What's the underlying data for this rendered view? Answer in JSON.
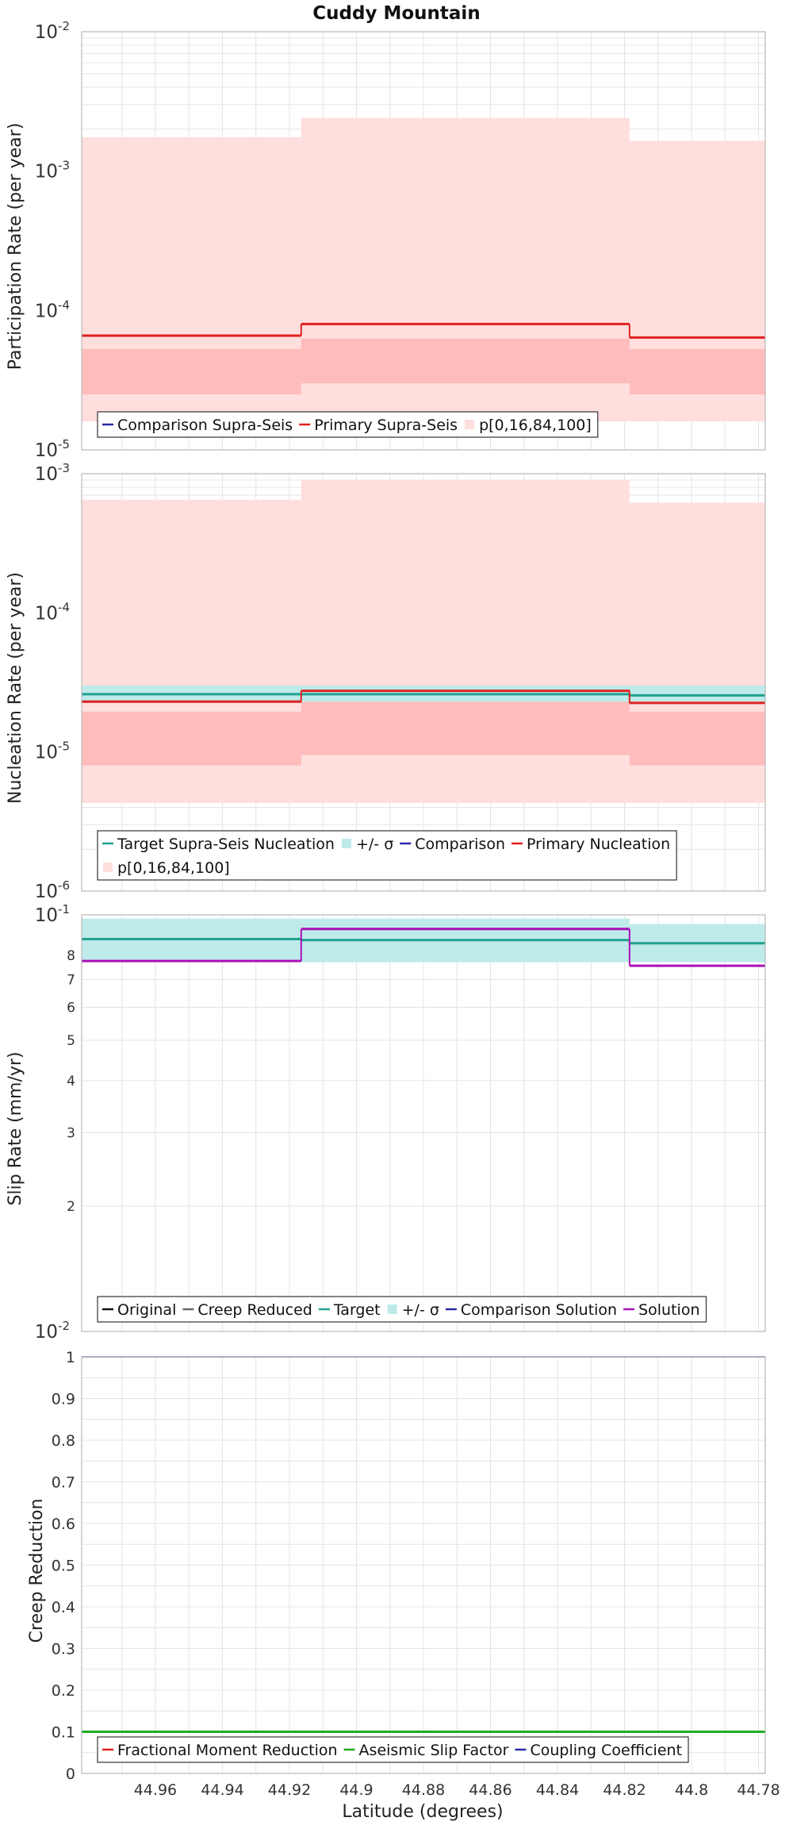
{
  "title": "Cuddy Mountain",
  "xlabel": "Latitude (degrees)",
  "colors": {
    "red": "#e02020",
    "red_band_light": "#ffdede",
    "red_band_dark": "#ffbcbc",
    "teal": "#20a090",
    "teal_band": "#bfeaea",
    "blue": "#2a2aa8",
    "magenta": "#aa10b8",
    "green": "#22aa22",
    "black": "#111111",
    "gray": "#666666",
    "grid": "#e4e4e4"
  },
  "chart_data": [
    {
      "type": "line",
      "name": "participation",
      "ylabel": "Participation Rate (per year)",
      "yscale": "log",
      "ylim": [
        1e-05,
        0.01
      ],
      "xlim": [
        44.982,
        44.778
      ],
      "xticks": [
        "44.96",
        "44.94",
        "44.92",
        "44.9",
        "44.88",
        "44.86",
        "44.84",
        "44.82",
        "44.8",
        "44.78"
      ],
      "xtick_values": [
        44.96,
        44.94,
        44.92,
        44.9,
        44.88,
        44.86,
        44.84,
        44.82,
        44.8,
        44.78
      ],
      "yticks_major": [
        {
          "base": "10",
          "exp": "-5",
          "v": 1e-05
        },
        {
          "base": "10",
          "exp": "-4",
          "v": 0.0001
        },
        {
          "base": "10",
          "exp": "-3",
          "v": 0.001
        },
        {
          "base": "10",
          "exp": "-2",
          "v": 0.01
        }
      ],
      "segments": [
        [
          44.982,
          44.9165
        ],
        [
          44.9165,
          44.8185
        ],
        [
          44.8185,
          44.778
        ]
      ],
      "bands": [
        {
          "lo": [
            1.6e-05,
            1.6e-05,
            1.6e-05
          ],
          "hi": [
            0.00175,
            0.0024,
            0.00165
          ],
          "color": "red_band_light"
        },
        {
          "lo": [
            2.5e-05,
            3e-05,
            2.5e-05
          ],
          "hi": [
            5.3e-05,
            6.3e-05,
            5.3e-05
          ],
          "color": "red_band_dark"
        }
      ],
      "series": [
        {
          "name": "Primary Supra-Seis",
          "values": [
            6.6e-05,
            8e-05,
            6.4e-05
          ],
          "color": "red"
        }
      ],
      "legend": [
        {
          "label": "Comparison Supra-Seis",
          "color": "blue",
          "kind": "line"
        },
        {
          "label": "Primary Supra-Seis",
          "color": "red",
          "kind": "line"
        },
        {
          "label": "p[0,16,84,100]",
          "color": "red_band_light",
          "kind": "patch"
        }
      ]
    },
    {
      "type": "line",
      "name": "nucleation",
      "ylabel": "Nucleation Rate (per year)",
      "yscale": "log",
      "ylim": [
        1e-06,
        0.001
      ],
      "xlim": [
        44.982,
        44.778
      ],
      "yticks_major": [
        {
          "base": "10",
          "exp": "-6",
          "v": 1e-06
        },
        {
          "base": "10",
          "exp": "-5",
          "v": 1e-05
        },
        {
          "base": "10",
          "exp": "-4",
          "v": 0.0001
        },
        {
          "base": "10",
          "exp": "-3",
          "v": 0.001
        }
      ],
      "segments": [
        [
          44.982,
          44.9165
        ],
        [
          44.9165,
          44.8185
        ],
        [
          44.8185,
          44.778
        ]
      ],
      "bands": [
        {
          "lo": [
            4.3e-06,
            4.3e-06,
            4.3e-06
          ],
          "hi": [
            0.00065,
            0.0009,
            0.00062
          ],
          "color": "red_band_light"
        },
        {
          "lo": [
            8e-06,
            9.5e-06,
            8e-06
          ],
          "hi": [
            1.95e-05,
            2.3e-05,
            1.95e-05
          ],
          "color": "red_band_dark"
        },
        {
          "lo": [
            2.3e-05,
            2.3e-05,
            2.3e-05
          ],
          "hi": [
            3e-05,
            3e-05,
            3e-05
          ],
          "color": "teal_band"
        }
      ],
      "series": [
        {
          "name": "Target Supra-Seis Nucleation",
          "values": [
            2.6e-05,
            2.6e-05,
            2.55e-05
          ],
          "color": "teal"
        },
        {
          "name": "Primary Nucleation",
          "values": [
            2.3e-05,
            2.75e-05,
            2.25e-05
          ],
          "color": "red"
        }
      ],
      "legend": [
        {
          "label": "Target Supra-Seis Nucleation",
          "color": "teal",
          "kind": "line"
        },
        {
          "label": "+/- σ",
          "color": "teal_band",
          "kind": "patch"
        },
        {
          "label": "Comparison",
          "color": "blue",
          "kind": "line"
        },
        {
          "label": "Primary Nucleation",
          "color": "red",
          "kind": "line"
        },
        {
          "label": "p[0,16,84,100]",
          "color": "red_band_light",
          "kind": "patch"
        }
      ]
    },
    {
      "type": "line",
      "name": "sliprate",
      "ylabel": "Slip Rate (mm/yr)",
      "yscale": "log",
      "ylim": [
        0.01,
        0.1
      ],
      "xlim": [
        44.982,
        44.778
      ],
      "yticks_major": [
        {
          "base": "10",
          "exp": "-2",
          "v": 0.01
        },
        {
          "base": "10",
          "exp": "-1",
          "v": 0.1
        }
      ],
      "yticks_minor": [
        {
          "label": "2",
          "v": 0.02
        },
        {
          "label": "3",
          "v": 0.03
        },
        {
          "label": "4",
          "v": 0.04
        },
        {
          "label": "5",
          "v": 0.05
        },
        {
          "label": "6",
          "v": 0.06
        },
        {
          "label": "7",
          "v": 0.07
        },
        {
          "label": "8",
          "v": 0.08
        }
      ],
      "segments": [
        [
          44.982,
          44.9165
        ],
        [
          44.9165,
          44.8185
        ],
        [
          44.8185,
          44.778
        ]
      ],
      "bands": [
        {
          "lo": [
            0.077,
            0.077,
            0.077
          ],
          "hi": [
            0.098,
            0.098,
            0.095
          ],
          "color": "teal_band"
        }
      ],
      "series": [
        {
          "name": "Target",
          "values": [
            0.0875,
            0.087,
            0.0855
          ],
          "color": "teal"
        },
        {
          "name": "Solution",
          "values": [
            0.0775,
            0.0925,
            0.0755
          ],
          "color": "magenta"
        }
      ],
      "legend": [
        {
          "label": "Original",
          "color": "black",
          "kind": "line"
        },
        {
          "label": "Creep Reduced",
          "color": "gray",
          "kind": "line"
        },
        {
          "label": "Target",
          "color": "teal",
          "kind": "line"
        },
        {
          "label": "+/- σ",
          "color": "teal_band",
          "kind": "patch"
        },
        {
          "label": "Comparison Solution",
          "color": "blue",
          "kind": "line"
        },
        {
          "label": "Solution",
          "color": "magenta",
          "kind": "line"
        }
      ]
    },
    {
      "type": "line",
      "name": "creep",
      "ylabel": "Creep Reduction",
      "yscale": "linear",
      "ylim": [
        0,
        1
      ],
      "xlim": [
        44.982,
        44.778
      ],
      "yticks": [
        "0",
        "0.1",
        "0.2",
        "0.3",
        "0.4",
        "0.5",
        "0.6",
        "0.7",
        "0.8",
        "0.9",
        "1"
      ],
      "ytick_values": [
        0,
        0.1,
        0.2,
        0.3,
        0.4,
        0.5,
        0.6,
        0.7,
        0.8,
        0.9,
        1
      ],
      "series": [
        {
          "name": "Aseismic Slip Factor",
          "values": [
            0.1
          ],
          "color": "green"
        },
        {
          "name": "Coupling Coefficient",
          "values": [
            1.0
          ],
          "color": "blue"
        }
      ],
      "legend": [
        {
          "label": "Fractional Moment Reduction",
          "color": "red",
          "kind": "line"
        },
        {
          "label": "Aseismic Slip Factor",
          "color": "green",
          "kind": "line"
        },
        {
          "label": "Coupling Coefficient",
          "color": "blue",
          "kind": "line"
        }
      ]
    }
  ]
}
